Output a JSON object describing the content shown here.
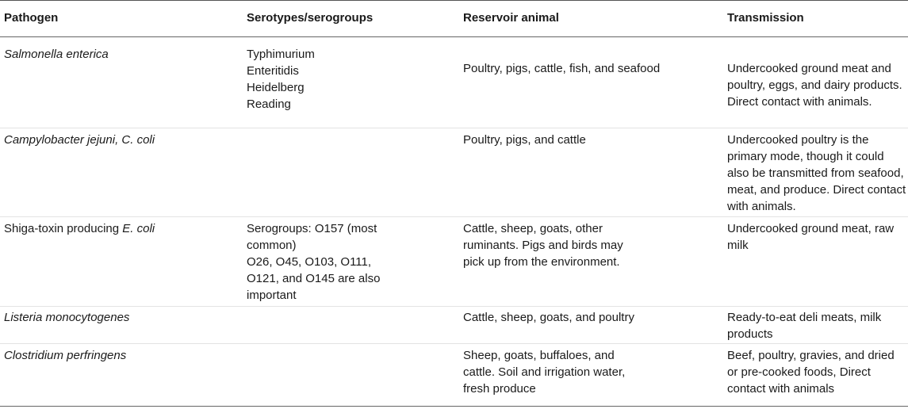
{
  "headers": {
    "pathogen": "Pathogen",
    "serotypes": "Serotypes/serogroups",
    "reservoir": "Reservoir animal",
    "transmission": "Transmission"
  },
  "rows": [
    {
      "pathogen": "Salmonella enterica",
      "serotypes": [
        "Typhimurium",
        "Enteritidis",
        "Heidelberg",
        "Reading"
      ],
      "reservoir": "Poultry, pigs, cattle, fish, and seafood",
      "transmission": "Undercooked ground meat and poultry, eggs, and dairy products. Direct contact with animals."
    },
    {
      "pathogen": "Campylobacter jejuni, C. coli",
      "serotypes": [],
      "reservoir": "Poultry, pigs, and cattle",
      "transmission": "Undercooked poultry is the primary mode, though it could also be transmitted from seafood, meat, and produce. Direct contact with animals."
    },
    {
      "pathogen_prefix": "Shiga-toxin producing ",
      "pathogen_italic": "E. coli",
      "serotypes": [
        "Serogroups: O157 (most common)",
        "O26, O45, O103, O111, O121, and O145 are also important"
      ],
      "reservoir": "Cattle, sheep, goats, other ruminants. Pigs and birds may pick up from the environment.",
      "transmission": "Undercooked ground meat, raw milk"
    },
    {
      "pathogen": "Listeria monocytogenes",
      "serotypes": [],
      "reservoir": "Cattle, sheep, goats, and poultry",
      "transmission": "Ready-to-eat deli meats, milk products"
    },
    {
      "pathogen": "Clostridium perfringens",
      "serotypes": [],
      "reservoir": "Sheep, goats, buffaloes, and cattle. Soil and irrigation water, fresh produce",
      "transmission": "Beef, poultry, gravies, and dried or pre-cooked foods, Direct contact with animals"
    }
  ]
}
